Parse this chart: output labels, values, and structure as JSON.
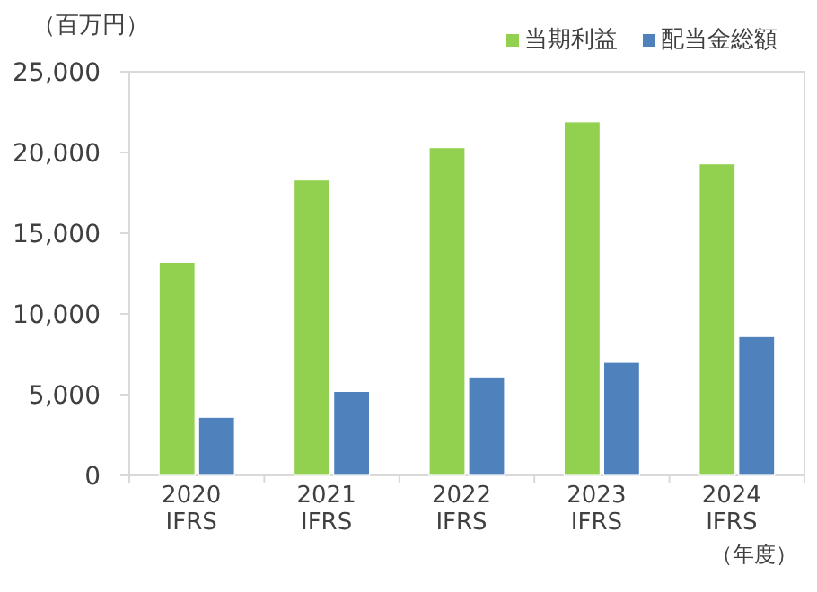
{
  "chart_data": {
    "type": "bar",
    "ylabel": "（百万円）",
    "xlabel": "（年度）",
    "categories": [
      "2020\nIFRS",
      "2021\nIFRS",
      "2022\nIFRS",
      "2023\nIFRS",
      "2024\nIFRS"
    ],
    "series": [
      {
        "name": "当期利益",
        "color": "#92d050",
        "values": [
          13200,
          18300,
          20300,
          21900,
          19300
        ]
      },
      {
        "name": "配当金総額",
        "color": "#4f81bd",
        "values": [
          3600,
          5200,
          6100,
          7000,
          8600
        ]
      }
    ],
    "ylim": [
      0,
      25000
    ],
    "yticks": [
      {
        "value": 0,
        "label": "0"
      },
      {
        "value": 5000,
        "label": "5,000"
      },
      {
        "value": 10000,
        "label": "10,000"
      },
      {
        "value": 15000,
        "label": "15,000"
      },
      {
        "value": 20000,
        "label": "20,000"
      },
      {
        "value": 25000,
        "label": "25,000"
      }
    ],
    "grid": false,
    "legend": "top right"
  }
}
